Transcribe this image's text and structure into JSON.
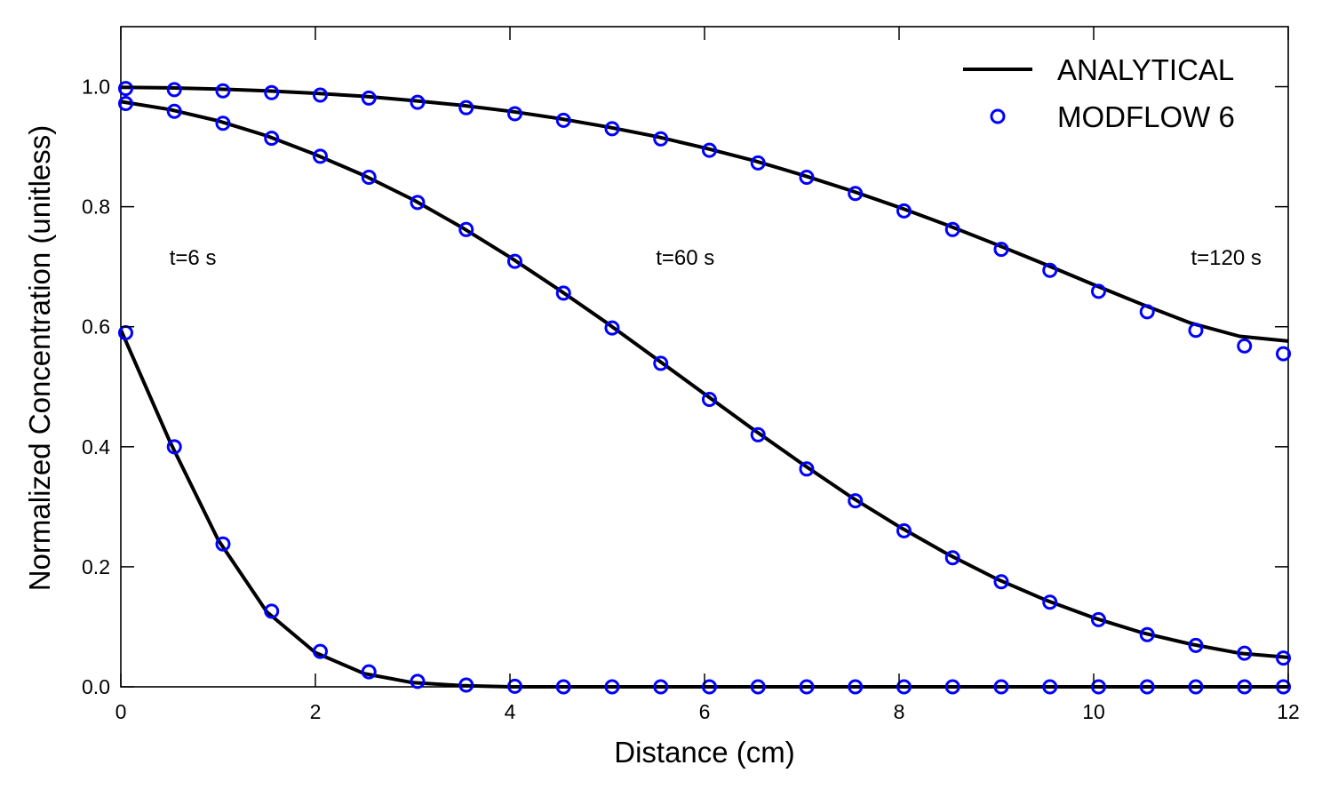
{
  "chart_data": {
    "type": "line",
    "xlabel": "Distance (cm)",
    "ylabel": "Normalized Concentration (unitless)",
    "xlim": [
      0,
      12
    ],
    "ylim": [
      0,
      1.1
    ],
    "xticks": [
      0,
      2,
      4,
      6,
      8,
      10,
      12
    ],
    "yticks": [
      0.0,
      0.2,
      0.4,
      0.6,
      0.8,
      1.0
    ],
    "xtick_labels": [
      "0",
      "2",
      "4",
      "6",
      "8",
      "10",
      "12"
    ],
    "ytick_labels": [
      "0.0",
      "0.2",
      "0.4",
      "0.6",
      "0.8",
      "1.0"
    ],
    "grid": false,
    "legend": {
      "position": "top-right",
      "entries": [
        {
          "label": "ANALYTICAL",
          "marker": "line",
          "color": "#000000"
        },
        {
          "label": "MODFLOW 6",
          "marker": "open-circle",
          "color": "#0000ff"
        }
      ]
    },
    "annotations": [
      {
        "text": "t=6 s",
        "x": 0.5,
        "y": 0.7
      },
      {
        "text": "t=60 s",
        "x": 5.5,
        "y": 0.7
      },
      {
        "text": "t=120 s",
        "x": 11.0,
        "y": 0.7
      }
    ],
    "analytical": [
      {
        "time": "t=6 s",
        "x": [
          0.0,
          0.5,
          1.0,
          1.5,
          2.0,
          2.5,
          3.0,
          3.5,
          4.0,
          5.0,
          6.0,
          7.0,
          8.0,
          9.0,
          10.0,
          11.0,
          12.0
        ],
        "y": [
          0.595,
          0.41,
          0.245,
          0.125,
          0.057,
          0.022,
          0.007,
          0.002,
          0.0,
          0.0,
          0.0,
          0.0,
          0.0,
          0.0,
          0.0,
          0.0,
          0.0
        ]
      },
      {
        "time": "t=60 s",
        "x": [
          0.0,
          0.5,
          1.0,
          1.5,
          2.0,
          2.5,
          3.0,
          3.5,
          4.0,
          4.5,
          5.0,
          5.5,
          6.0,
          6.5,
          7.0,
          7.5,
          8.0,
          8.5,
          9.0,
          9.5,
          10.0,
          10.5,
          11.0,
          11.5,
          12.0
        ],
        "y": [
          0.975,
          0.962,
          0.943,
          0.918,
          0.887,
          0.852,
          0.812,
          0.766,
          0.716,
          0.662,
          0.606,
          0.547,
          0.488,
          0.429,
          0.372,
          0.317,
          0.267,
          0.221,
          0.18,
          0.145,
          0.115,
          0.09,
          0.071,
          0.056,
          0.049
        ]
      },
      {
        "time": "t=120 s",
        "x": [
          0.0,
          0.5,
          1.0,
          1.5,
          2.0,
          2.5,
          3.0,
          3.5,
          4.0,
          4.5,
          5.0,
          5.5,
          6.0,
          6.5,
          7.0,
          7.5,
          8.0,
          8.5,
          9.0,
          9.5,
          10.0,
          10.5,
          11.0,
          11.5,
          12.0
        ],
        "y": [
          0.999,
          0.998,
          0.996,
          0.993,
          0.989,
          0.984,
          0.977,
          0.969,
          0.959,
          0.947,
          0.933,
          0.917,
          0.898,
          0.877,
          0.853,
          0.827,
          0.799,
          0.769,
          0.737,
          0.704,
          0.67,
          0.637,
          0.606,
          0.584,
          0.576
        ]
      }
    ],
    "modflow6": [
      {
        "time": "t=6 s",
        "x": [
          0.05,
          0.55,
          1.05,
          1.55,
          2.05,
          2.55,
          3.05,
          3.55,
          4.05,
          4.55,
          5.05,
          5.55,
          6.05,
          6.55,
          7.05,
          7.55,
          8.05,
          8.55,
          9.05,
          9.55,
          10.05,
          10.55,
          11.05,
          11.55,
          11.95
        ],
        "y": [
          0.59,
          0.4,
          0.238,
          0.126,
          0.059,
          0.025,
          0.009,
          0.003,
          0.001,
          0.0,
          0.0,
          0.0,
          0.0,
          0.0,
          0.0,
          0.0,
          0.0,
          0.0,
          0.0,
          0.0,
          0.0,
          0.0,
          0.0,
          0.0,
          0.0
        ]
      },
      {
        "time": "t=60 s",
        "x": [
          0.05,
          0.55,
          1.05,
          1.55,
          2.05,
          2.55,
          3.05,
          3.55,
          4.05,
          4.55,
          5.05,
          5.55,
          6.05,
          6.55,
          7.05,
          7.55,
          8.05,
          8.55,
          9.05,
          9.55,
          10.05,
          10.55,
          11.05,
          11.55,
          11.95
        ],
        "y": [
          0.972,
          0.959,
          0.939,
          0.914,
          0.884,
          0.849,
          0.807,
          0.762,
          0.709,
          0.656,
          0.598,
          0.539,
          0.479,
          0.42,
          0.363,
          0.31,
          0.26,
          0.215,
          0.175,
          0.141,
          0.112,
          0.087,
          0.069,
          0.056,
          0.048
        ]
      },
      {
        "time": "t=120 s",
        "x": [
          0.05,
          0.55,
          1.05,
          1.55,
          2.05,
          2.55,
          3.05,
          3.55,
          4.05,
          4.55,
          5.05,
          5.55,
          6.05,
          6.55,
          7.05,
          7.55,
          8.05,
          8.55,
          9.05,
          9.55,
          10.05,
          10.55,
          11.05,
          11.55,
          11.95
        ],
        "y": [
          0.997,
          0.995,
          0.993,
          0.99,
          0.986,
          0.981,
          0.974,
          0.965,
          0.955,
          0.944,
          0.93,
          0.913,
          0.894,
          0.873,
          0.849,
          0.822,
          0.793,
          0.762,
          0.729,
          0.694,
          0.659,
          0.625,
          0.594,
          0.568,
          0.555
        ]
      }
    ]
  }
}
